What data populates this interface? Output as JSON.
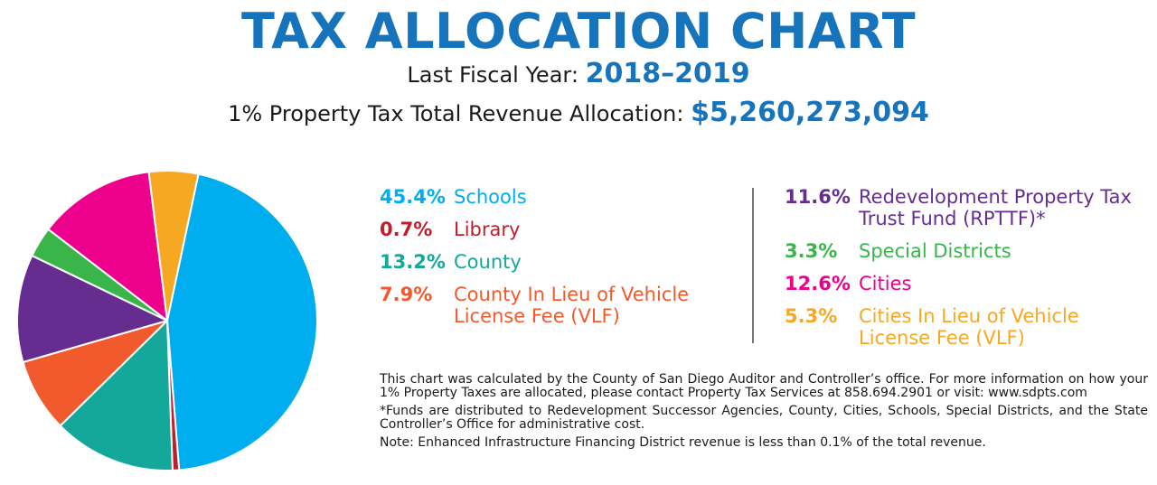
{
  "header": {
    "title": "TAX ALLOCATION CHART",
    "fiscal_label": "Last Fiscal Year:",
    "fiscal_value": "2018–2019",
    "revenue_label": "1% Property Tax Total Revenue Allocation:",
    "revenue_value": "$5,260,273,094"
  },
  "chart_data": {
    "type": "pie",
    "title": "",
    "start_angle_deg": 12,
    "slices": [
      {
        "pct_label": "45.4%",
        "value": 45.4,
        "label": "Schools",
        "color": "#00adee"
      },
      {
        "pct_label": "0.7%",
        "value": 0.7,
        "label": "Library",
        "color": "#be1e2d"
      },
      {
        "pct_label": "13.2%",
        "value": 13.2,
        "label": "County",
        "color": "#14a89b"
      },
      {
        "pct_label": "7.9%",
        "value": 7.9,
        "label": "County In Lieu of Vehicle License Fee (VLF)",
        "color": "#f15a2c"
      },
      {
        "pct_label": "11.6%",
        "value": 11.6,
        "label": "Redevelopment Property Tax Trust Fund (RPTTF)*",
        "color": "#662d91"
      },
      {
        "pct_label": "3.3%",
        "value": 3.3,
        "label": "Special Districts",
        "color": "#39b54a"
      },
      {
        "pct_label": "12.6%",
        "value": 12.6,
        "label": "Cities",
        "color": "#ec008c"
      },
      {
        "pct_label": "5.3%",
        "value": 5.3,
        "label": "Cities In Lieu of Vehicle License Fee (VLF)",
        "color": "#f7a823"
      }
    ]
  },
  "notes": {
    "p1": "This chart was calculated by the County of San Diego Auditor and Controller’s office. For more information on how your 1% Property Taxes are allocated, please contact Property Tax Services at 858.694.2901 or visit: www.sdpts.com",
    "p2": "*Funds are distributed to Redevelopment Successor Agencies, County, Cities, Schools, Special Districts, and the State Controller’s Office for administrative cost.",
    "p3": "Note: Enhanced Infrastructure Financing District revenue is less than 0.1% of the total revenue."
  }
}
